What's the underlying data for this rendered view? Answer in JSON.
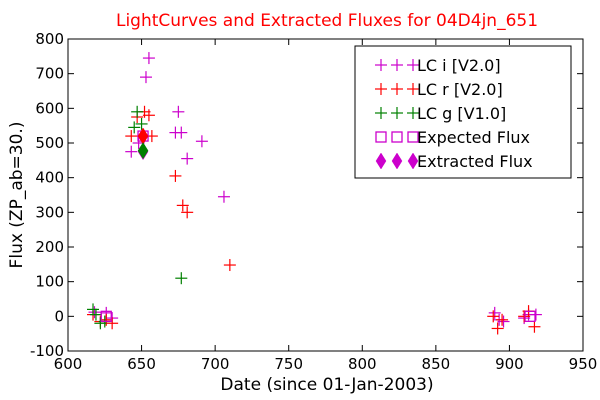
{
  "chart_data": {
    "type": "scatter",
    "title": "LightCurves and Extracted Fluxes for 04D4jn_651",
    "xlabel": "Date (since 01-Jan-2003)",
    "ylabel": "Flux (ZP_ab=30.)",
    "xlim": [
      600,
      950
    ],
    "ylim": [
      -100,
      800
    ],
    "xticks": [
      600,
      650,
      700,
      750,
      800,
      850,
      900,
      950
    ],
    "yticks": [
      -100,
      0,
      100,
      200,
      300,
      400,
      500,
      600,
      700,
      800
    ],
    "grid": false,
    "legend_position": "top-right",
    "series": [
      {
        "name": "LC i [V2.0]",
        "marker": "plus",
        "color": "#cc00cc",
        "points": [
          [
            618,
            12
          ],
          [
            626,
            10
          ],
          [
            630,
            -5
          ],
          [
            643,
            475
          ],
          [
            648,
            500
          ],
          [
            651,
            520
          ],
          [
            653,
            690
          ],
          [
            655,
            745
          ],
          [
            673,
            530
          ],
          [
            675,
            590
          ],
          [
            677,
            530
          ],
          [
            681,
            455
          ],
          [
            691,
            505
          ],
          [
            706,
            345
          ],
          [
            890,
            10
          ],
          [
            893,
            -10
          ],
          [
            896,
            -15
          ],
          [
            910,
            -5
          ],
          [
            913,
            5
          ],
          [
            918,
            5
          ]
        ]
      },
      {
        "name": "LC r [V2.0]",
        "marker": "plus",
        "color": "#ff0000",
        "points": [
          [
            617,
            5
          ],
          [
            622,
            -15
          ],
          [
            626,
            -10
          ],
          [
            630,
            -20
          ],
          [
            643,
            520
          ],
          [
            647,
            575
          ],
          [
            652,
            590
          ],
          [
            655,
            580
          ],
          [
            657,
            520
          ],
          [
            673,
            405
          ],
          [
            678,
            320
          ],
          [
            681,
            300
          ],
          [
            710,
            148
          ],
          [
            889,
            0
          ],
          [
            892,
            -35
          ],
          [
            895,
            -10
          ],
          [
            910,
            0
          ],
          [
            913,
            15
          ],
          [
            917,
            -30
          ]
        ]
      },
      {
        "name": "LC g [V1.0]",
        "marker": "plus",
        "color": "#008000",
        "points": [
          [
            617,
            20
          ],
          [
            619,
            5
          ],
          [
            622,
            -20
          ],
          [
            625,
            -15
          ],
          [
            645,
            545
          ],
          [
            647,
            590
          ],
          [
            650,
            555
          ],
          [
            677,
            110
          ]
        ]
      },
      {
        "name": "Expected Flux",
        "marker": "square-open",
        "color": "#cc00cc",
        "points": [
          [
            651,
            520
          ],
          [
            626,
            0
          ],
          [
            914,
            0
          ]
        ]
      },
      {
        "name": "Extracted Flux",
        "marker": "diamond",
        "color": "#cc00cc",
        "points": [
          [
            651,
            520
          ],
          [
            651,
            475
          ]
        ]
      }
    ],
    "overlay_points": [
      {
        "marker": "diamond",
        "color": "#ff0000",
        "point": [
          651,
          520
        ]
      },
      {
        "marker": "diamond",
        "color": "#008000",
        "point": [
          651,
          478
        ]
      }
    ]
  }
}
